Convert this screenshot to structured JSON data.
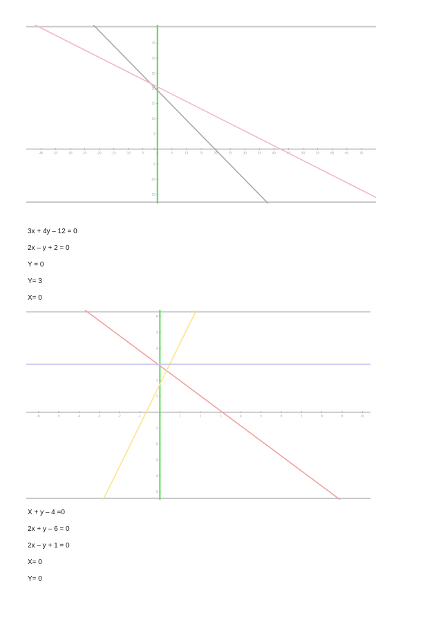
{
  "colors": {
    "axis": "#999999",
    "yaxis": "#55dd55",
    "frame": "#c8c8c8",
    "g1_line_a": "#a9a9a9",
    "g1_line_b": "#f2b8c6",
    "g2_line_a": "#f0a0a0",
    "g2_line_b": "#ffe38a",
    "g2_line_c": "#c7c7ef"
  },
  "chart_data": [
    {
      "type": "line",
      "x_ticks": [
        -40,
        -35,
        -30,
        -25,
        -20,
        -15,
        -10,
        -5,
        0,
        5,
        10,
        15,
        20,
        25,
        30,
        35,
        40,
        45,
        50,
        55,
        60,
        65,
        70
      ],
      "y_ticks": [
        -15,
        -10,
        -5,
        0,
        5,
        10,
        15,
        20,
        25,
        30,
        35
      ],
      "xlim": [
        -45,
        75
      ],
      "ylim": [
        -18,
        41
      ],
      "grid": false,
      "series": [
        {
          "x": [
            -22,
            38
          ],
          "y": [
            41,
            -18
          ],
          "color": "#a9a9a9"
        },
        {
          "x": [
            -42,
            75
          ],
          "y": [
            41,
            -16
          ],
          "color": "#f2b8c6"
        }
      ]
    },
    {
      "type": "line",
      "x_ticks": [
        -6,
        -5,
        -4,
        -3,
        -2,
        -1,
        0,
        1,
        2,
        3,
        4,
        5,
        6,
        7,
        8,
        9,
        10
      ],
      "y_ticks": [
        -5,
        -4,
        -3,
        -2,
        -1,
        1,
        2,
        3,
        4,
        5,
        6
      ],
      "xlim": [
        -6.6,
        10.4
      ],
      "ylim": [
        -5.5,
        6.4
      ],
      "grid": false,
      "series": [
        {
          "x": [
            -3.7,
            8.9
          ],
          "y": [
            6.4,
            -5.5
          ],
          "color": "#f0a0a0"
        },
        {
          "x": [
            -2.8,
            1.8
          ],
          "y": [
            -5.5,
            6.4
          ],
          "color": "#ffe38a"
        },
        {
          "x": [
            -6.6,
            10.4
          ],
          "y": [
            3,
            3
          ],
          "color": "#c7c7ef"
        }
      ]
    }
  ],
  "equations_1": [
    "3x + 4y – 12 = 0",
    "2x – y + 2 = 0",
    "Y = 0",
    "Y= 3",
    "X= 0"
  ],
  "equations_2": [
    "X + y – 4 =0",
    "2x + y – 6 = 0",
    "2x – y + 1 = 0",
    "X= 0",
    "Y= 0"
  ]
}
